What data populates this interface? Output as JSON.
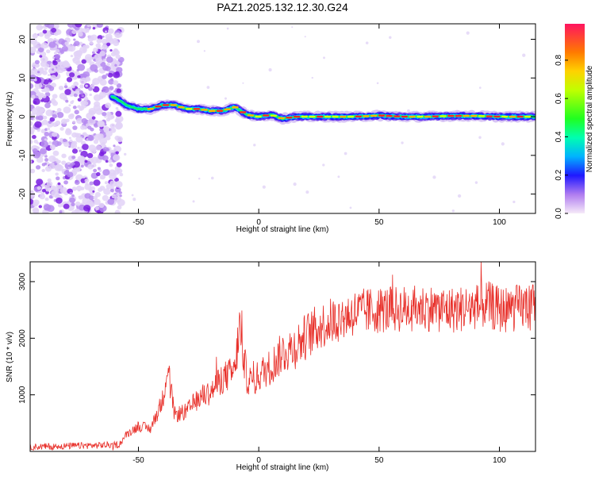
{
  "chart_data": [
    {
      "type": "heatmap",
      "title": "PAZ1.2025.132.12.30.G24",
      "xlabel": "Height of straight line (km)",
      "ylabel": "Frequency (Hz)",
      "xlim": [
        -95,
        115
      ],
      "ylim": [
        -25,
        24
      ],
      "xticks": [
        -50,
        0,
        50,
        100
      ],
      "yticks": [
        20,
        10,
        0,
        -10,
        -20
      ],
      "colorbar": {
        "label": "Normalized spectral amplitude",
        "range": [
          0,
          0.99
        ],
        "ticks": [
          0.0,
          0.2,
          0.4,
          0.6,
          0.8
        ],
        "tick_labels": [
          "0.0",
          "0.2",
          "0.4",
          "0.6",
          "0.8"
        ]
      },
      "ridge": {
        "description_points_x": [
          -60,
          -55,
          -50,
          -45,
          -40,
          -35,
          -30,
          -25,
          -20,
          -15,
          -10,
          -5,
          0,
          5,
          10,
          15,
          20,
          30,
          40,
          50,
          60,
          70,
          80,
          90,
          100,
          110,
          115
        ],
        "frequency": [
          5,
          3,
          2,
          2,
          3,
          3,
          2,
          2,
          1.5,
          1.5,
          2.5,
          0.5,
          0,
          0.5,
          -0.5,
          0,
          0,
          0,
          0,
          0.3,
          0,
          0,
          0.2,
          0.2,
          0,
          0,
          0
        ]
      },
      "noise_region_x": [
        -95,
        -60
      ]
    },
    {
      "type": "line",
      "xlabel": "Height of straight line (km)",
      "ylabel": "SNR (10 * v/v)",
      "xlim": [
        -95,
        115
      ],
      "ylim": [
        0,
        3350
      ],
      "xticks": [
        -50,
        0,
        50,
        100
      ],
      "yticks": [
        1000,
        2000,
        3000
      ],
      "color": "#e8302a",
      "series": [
        {
          "x": [
            -95,
            -85,
            -75,
            -65,
            -58,
            -55,
            -50,
            -45,
            -40,
            -38,
            -35,
            -30,
            -25,
            -20,
            -15,
            -10,
            -8,
            -5,
            -2,
            0,
            5,
            10,
            15,
            20,
            25,
            30,
            40,
            50,
            60,
            70,
            80,
            90,
            95,
            100,
            105,
            110,
            115
          ],
          "values": [
            80,
            90,
            100,
            110,
            120,
            300,
            450,
            400,
            900,
            1500,
            650,
            700,
            950,
            1050,
            1300,
            1400,
            2200,
            1300,
            1200,
            1350,
            1500,
            1750,
            1850,
            2050,
            2200,
            2300,
            2450,
            2500,
            2520,
            2540,
            2500,
            2550,
            2600,
            2500,
            2520,
            2550,
            2560
          ]
        }
      ]
    }
  ],
  "colors": {
    "line": "#e8302a",
    "ridge_peak": "#e8242a",
    "noise": "#8a2be2"
  }
}
